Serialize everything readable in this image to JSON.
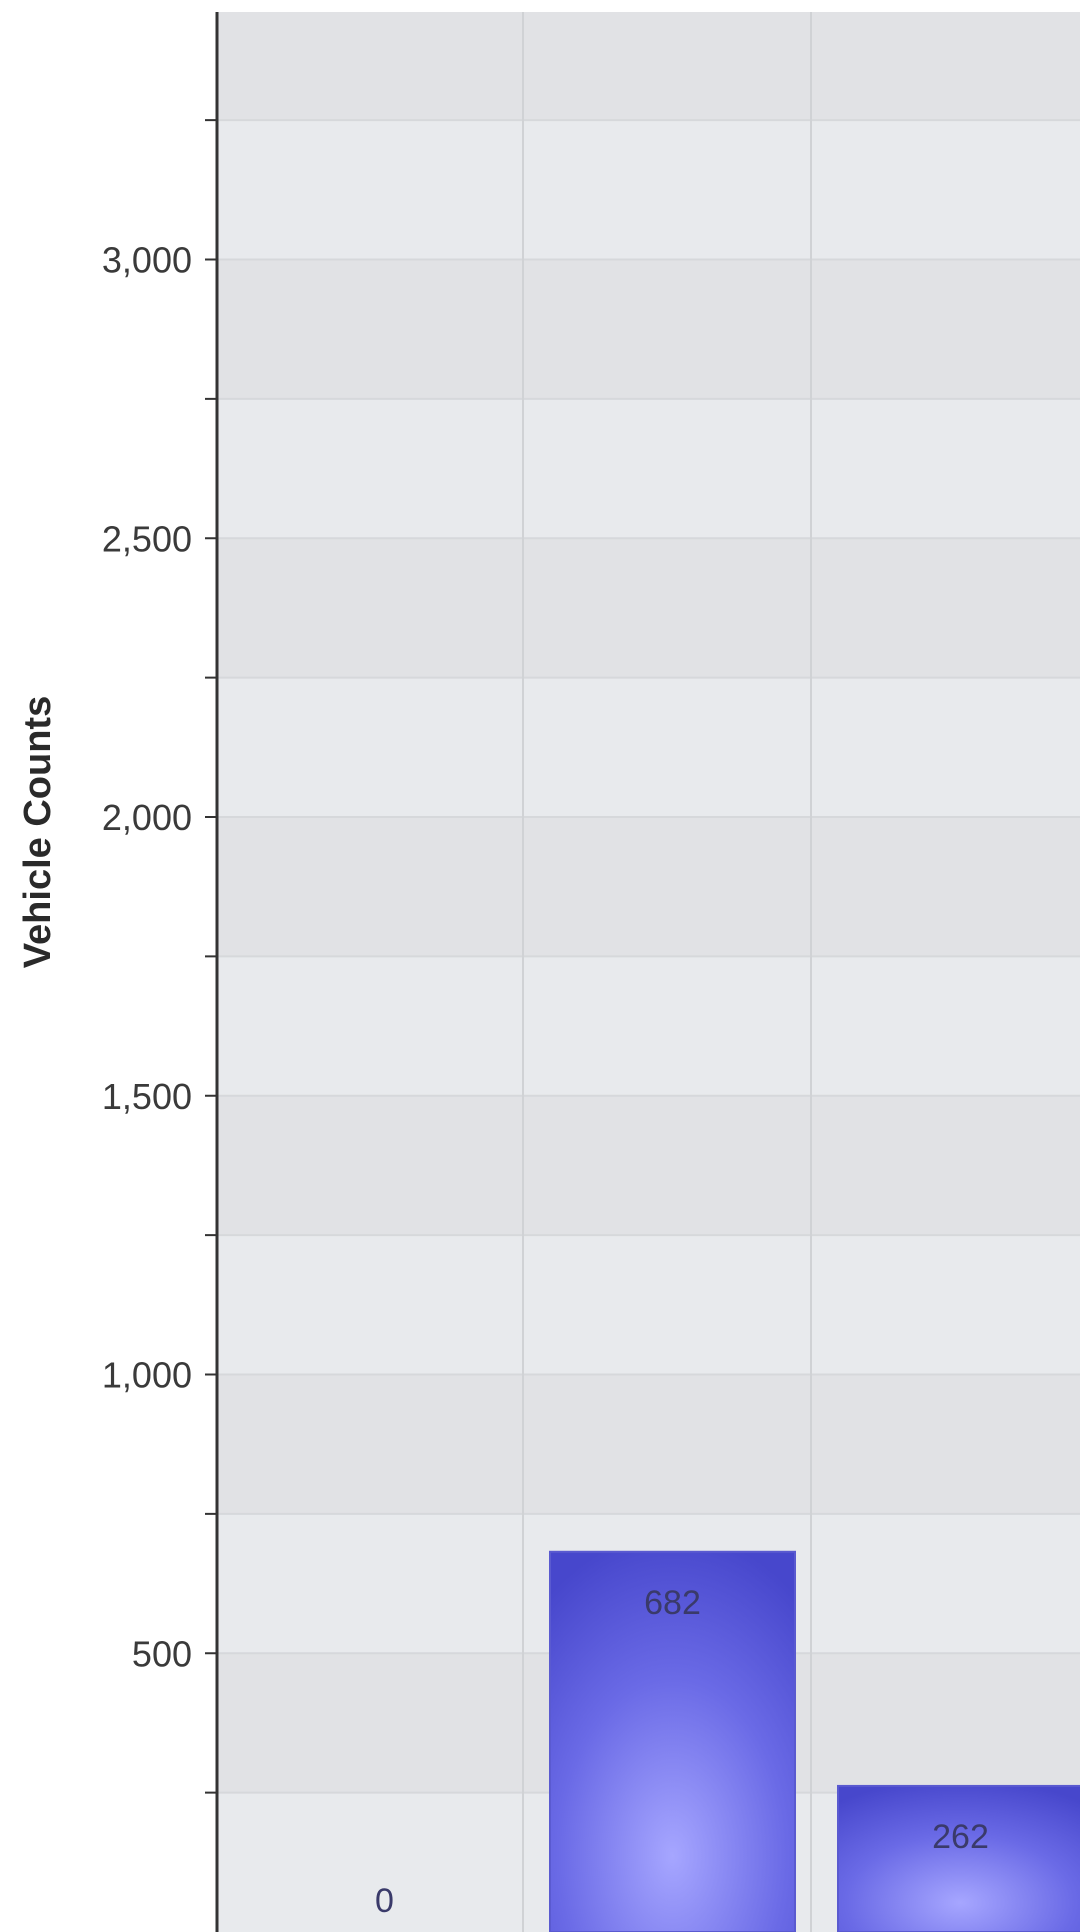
{
  "chart_data": {
    "type": "bar",
    "title": "",
    "xlabel": "",
    "ylabel": "Vehicle Counts",
    "ylim": [
      0,
      3500
    ],
    "yticks": [
      {
        "value": 500,
        "label": "500"
      },
      {
        "value": 1000,
        "label": "1,000"
      },
      {
        "value": 1500,
        "label": "1,500"
      },
      {
        "value": 2000,
        "label": "2,000"
      },
      {
        "value": 2500,
        "label": "2,500"
      },
      {
        "value": 3000,
        "label": "3,000"
      }
    ],
    "grid": true,
    "values": [
      0,
      682,
      262
    ],
    "value_labels": [
      "0",
      "682",
      "262"
    ],
    "colors": {
      "bar": "#6a6ae6",
      "bar_light": "#a6a6ff",
      "bar_dark": "#4747cc",
      "band_light": "#e8eaed",
      "band_dark": "#e1e2e5",
      "axis": "#333333",
      "tick_label": "#3a3a3a",
      "value_label": "#3a3a6a"
    }
  }
}
